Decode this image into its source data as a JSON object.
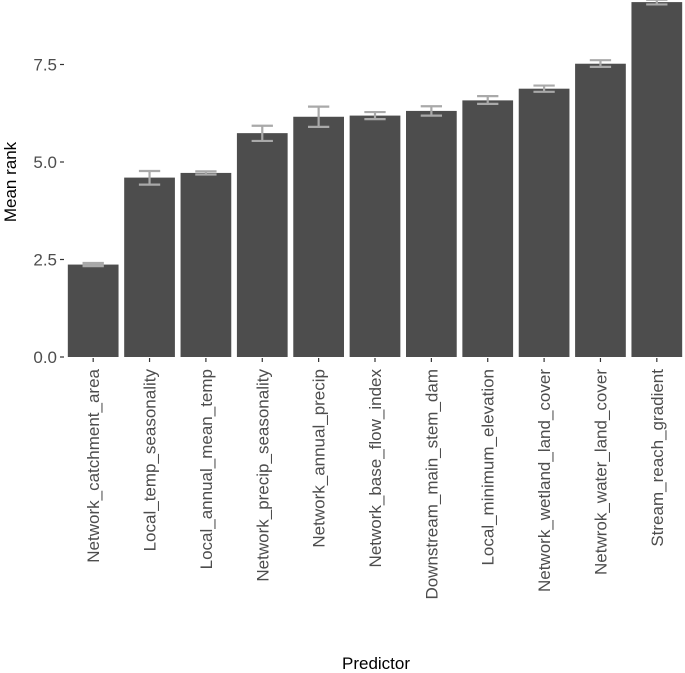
{
  "chart_data": {
    "type": "bar",
    "xlabel": "Predictor",
    "ylabel": "Mean rank",
    "ylim": [
      0,
      9.15
    ],
    "yticks": [
      0.0,
      2.5,
      5.0,
      7.5
    ],
    "ytick_labels": [
      "0.0",
      "2.5",
      "5.0",
      "7.5"
    ],
    "grid": false,
    "categories": [
      "Network_catchment_area",
      "Local_temp_seasonality",
      "Local_annual_mean_temp",
      "Network_precip_seasonality",
      "Network_annual_precip",
      "Network_base_flow_index",
      "Downstream_main_stem_dam",
      "Local_minimum_elevation",
      "Network_wetland_land_cover",
      "Netwrok_water_land_cover",
      "Stream_reach_gradient"
    ],
    "values": [
      2.37,
      4.6,
      4.72,
      5.74,
      6.16,
      6.19,
      6.31,
      6.58,
      6.88,
      7.52,
      9.1
    ],
    "error_low": [
      2.33,
      4.42,
      4.68,
      5.54,
      5.9,
      6.1,
      6.19,
      6.49,
      6.8,
      7.44,
      9.04
    ],
    "error_high": [
      2.41,
      4.77,
      4.76,
      5.93,
      6.42,
      6.28,
      6.43,
      6.69,
      6.96,
      7.61,
      9.16
    ],
    "colors": {
      "bar": "#4d4d4d",
      "errorbar": "#a9a9a9"
    }
  }
}
